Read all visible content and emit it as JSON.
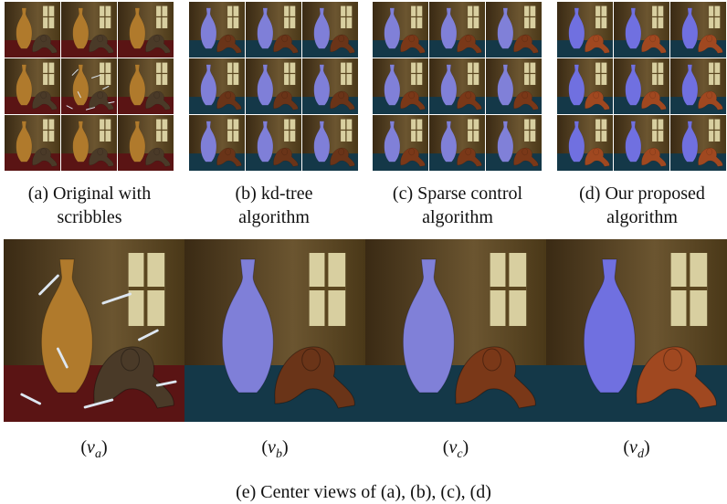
{
  "panels": [
    {
      "caption": [
        "(a) Original with",
        "scribbles"
      ]
    },
    {
      "caption": [
        "(b) kd-tree",
        "algorithm"
      ]
    },
    {
      "caption": [
        "(c) Sparse control",
        "algorithm"
      ]
    },
    {
      "caption": [
        "(d) Our proposed",
        "algorithm"
      ]
    }
  ],
  "views": [
    {
      "open": "(",
      "var": "v",
      "sub": "a",
      "close": ")"
    },
    {
      "open": "(",
      "var": "v",
      "sub": "b",
      "close": ")"
    },
    {
      "open": "(",
      "var": "v",
      "sub": "c",
      "close": ")"
    },
    {
      "open": "(",
      "var": "v",
      "sub": "d",
      "close": ")"
    }
  ],
  "caption": "(e) Center views of (a), (b), (c), (d)"
}
